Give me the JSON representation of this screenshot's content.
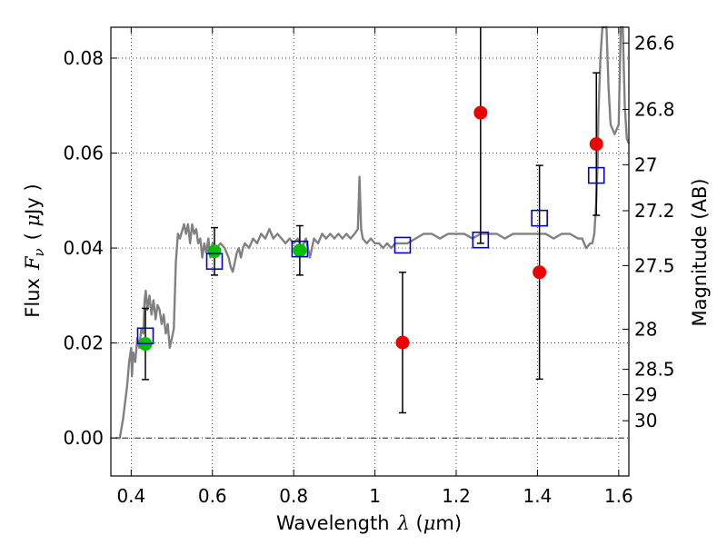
{
  "chart_data": {
    "type": "scatter",
    "xlabel": {
      "prefix": "Wavelength",
      "symbol": "λ",
      "unit_open": " (",
      "unit_mu": "μ",
      "unit_rest": "m)"
    },
    "ylabel": {
      "prefix": "Flux",
      "symbol": "F",
      "sub": "ν",
      "unit_open": "( ",
      "unit_mu": "μ",
      "unit_rest": "Jy )"
    },
    "y2label": "Magnitude (AB)",
    "xlim": [
      0.35,
      1.625
    ],
    "ylim": [
      -0.008,
      0.0865
    ],
    "grid": true,
    "x_ticks": [
      {
        "value": 0.4,
        "label": "0.4"
      },
      {
        "value": 0.6,
        "label": "0.6"
      },
      {
        "value": 0.8,
        "label": "0.8"
      },
      {
        "value": 1.0,
        "label": "1"
      },
      {
        "value": 1.2,
        "label": "1.2"
      },
      {
        "value": 1.4,
        "label": "1.4"
      },
      {
        "value": 1.6,
        "label": "1.6"
      }
    ],
    "y_ticks": [
      {
        "value": 0.0,
        "label": "0.00"
      },
      {
        "value": 0.02,
        "label": "0.02"
      },
      {
        "value": 0.04,
        "label": "0.04"
      },
      {
        "value": 0.06,
        "label": "0.06"
      },
      {
        "value": 0.08,
        "label": "0.08"
      }
    ],
    "mag_ticks": [
      {
        "mag": 26.6,
        "label": "26.6"
      },
      {
        "mag": 26.8,
        "label": "26.8"
      },
      {
        "mag": 27.0,
        "label": "27"
      },
      {
        "mag": 27.2,
        "label": "27.2"
      },
      {
        "mag": 27.5,
        "label": "27.5"
      },
      {
        "mag": 28.0,
        "label": "28"
      },
      {
        "mag": 28.5,
        "label": "28.5"
      },
      {
        "mag": 29.0,
        "label": "29"
      },
      {
        "mag": 30.0,
        "label": "30"
      }
    ],
    "series": [
      {
        "kind": "line",
        "color": "#808080",
        "points": [
          [
            0.362,
            0.0
          ],
          [
            0.372,
            0.0
          ],
          [
            0.38,
            0.004
          ],
          [
            0.39,
            0.011
          ],
          [
            0.395,
            0.016
          ],
          [
            0.4,
            0.019
          ],
          [
            0.402,
            0.013
          ],
          [
            0.405,
            0.018
          ],
          [
            0.41,
            0.016
          ],
          [
            0.415,
            0.021
          ],
          [
            0.42,
            0.019
          ],
          [
            0.425,
            0.023
          ],
          [
            0.43,
            0.022
          ],
          [
            0.433,
            0.029
          ],
          [
            0.436,
            0.031
          ],
          [
            0.44,
            0.027
          ],
          [
            0.445,
            0.03
          ],
          [
            0.45,
            0.026
          ],
          [
            0.455,
            0.029
          ],
          [
            0.46,
            0.025
          ],
          [
            0.465,
            0.028
          ],
          [
            0.47,
            0.027
          ],
          [
            0.475,
            0.024
          ],
          [
            0.48,
            0.026
          ],
          [
            0.485,
            0.022
          ],
          [
            0.49,
            0.024
          ],
          [
            0.495,
            0.019
          ],
          [
            0.5,
            0.021
          ],
          [
            0.505,
            0.023
          ],
          [
            0.51,
            0.037
          ],
          [
            0.515,
            0.043
          ],
          [
            0.52,
            0.042
          ],
          [
            0.53,
            0.045
          ],
          [
            0.535,
            0.043
          ],
          [
            0.54,
            0.045
          ],
          [
            0.545,
            0.041
          ],
          [
            0.55,
            0.045
          ],
          [
            0.555,
            0.043
          ],
          [
            0.56,
            0.044
          ],
          [
            0.565,
            0.041
          ],
          [
            0.57,
            0.042
          ],
          [
            0.575,
            0.038
          ],
          [
            0.58,
            0.041
          ],
          [
            0.585,
            0.039
          ],
          [
            0.59,
            0.042
          ],
          [
            0.595,
            0.038
          ],
          [
            0.6,
            0.041
          ],
          [
            0.61,
            0.04
          ],
          [
            0.62,
            0.041
          ],
          [
            0.63,
            0.04
          ],
          [
            0.64,
            0.038
          ],
          [
            0.645,
            0.036
          ],
          [
            0.65,
            0.035
          ],
          [
            0.655,
            0.037
          ],
          [
            0.66,
            0.039
          ],
          [
            0.665,
            0.04
          ],
          [
            0.67,
            0.038
          ],
          [
            0.675,
            0.04
          ],
          [
            0.68,
            0.041
          ],
          [
            0.69,
            0.04
          ],
          [
            0.7,
            0.042
          ],
          [
            0.71,
            0.041
          ],
          [
            0.72,
            0.043
          ],
          [
            0.73,
            0.042
          ],
          [
            0.74,
            0.044
          ],
          [
            0.75,
            0.042
          ],
          [
            0.76,
            0.043
          ],
          [
            0.77,
            0.042
          ],
          [
            0.78,
            0.041
          ],
          [
            0.79,
            0.042
          ],
          [
            0.8,
            0.041
          ],
          [
            0.81,
            0.042
          ],
          [
            0.82,
            0.04
          ],
          [
            0.83,
            0.042
          ],
          [
            0.84,
            0.038
          ],
          [
            0.85,
            0.042
          ],
          [
            0.86,
            0.041
          ],
          [
            0.87,
            0.043
          ],
          [
            0.88,
            0.042
          ],
          [
            0.89,
            0.043
          ],
          [
            0.9,
            0.042
          ],
          [
            0.91,
            0.043
          ],
          [
            0.92,
            0.042
          ],
          [
            0.93,
            0.043
          ],
          [
            0.94,
            0.042
          ],
          [
            0.95,
            0.043
          ],
          [
            0.958,
            0.044
          ],
          [
            0.962,
            0.055
          ],
          [
            0.966,
            0.044
          ],
          [
            0.97,
            0.042
          ],
          [
            0.98,
            0.041
          ],
          [
            0.99,
            0.042
          ],
          [
            1.0,
            0.041
          ],
          [
            1.01,
            0.041
          ],
          [
            1.02,
            0.04
          ],
          [
            1.03,
            0.041
          ],
          [
            1.04,
            0.04
          ],
          [
            1.05,
            0.041
          ],
          [
            1.06,
            0.041
          ],
          [
            1.08,
            0.041
          ],
          [
            1.1,
            0.042
          ],
          [
            1.12,
            0.043
          ],
          [
            1.14,
            0.043
          ],
          [
            1.16,
            0.042
          ],
          [
            1.18,
            0.043
          ],
          [
            1.2,
            0.043
          ],
          [
            1.22,
            0.043
          ],
          [
            1.24,
            0.042
          ],
          [
            1.26,
            0.043
          ],
          [
            1.28,
            0.043
          ],
          [
            1.3,
            0.043
          ],
          [
            1.32,
            0.042
          ],
          [
            1.34,
            0.043
          ],
          [
            1.36,
            0.043
          ],
          [
            1.38,
            0.043
          ],
          [
            1.4,
            0.043
          ],
          [
            1.42,
            0.043
          ],
          [
            1.44,
            0.042
          ],
          [
            1.46,
            0.043
          ],
          [
            1.48,
            0.043
          ],
          [
            1.5,
            0.042
          ],
          [
            1.51,
            0.042
          ],
          [
            1.52,
            0.04
          ],
          [
            1.53,
            0.041
          ],
          [
            1.535,
            0.041
          ],
          [
            1.54,
            0.043
          ],
          [
            1.545,
            0.05
          ],
          [
            1.548,
            0.058
          ],
          [
            1.55,
            0.068
          ],
          [
            1.555,
            0.08
          ],
          [
            1.56,
            0.087
          ],
          [
            1.57,
            0.087
          ],
          [
            1.575,
            0.074
          ],
          [
            1.58,
            0.066
          ],
          [
            1.59,
            0.064
          ],
          [
            1.6,
            0.066
          ],
          [
            1.605,
            0.087
          ],
          [
            1.61,
            0.087
          ],
          [
            1.615,
            0.07
          ],
          [
            1.62,
            0.063
          ],
          [
            1.625,
            0.062
          ]
        ]
      },
      {
        "kind": "markers",
        "marker": "circle",
        "color": "#00c000",
        "points": [
          {
            "x": 0.435,
            "y": 0.0198,
            "yerr_low": 0.0075,
            "yerr_high": 0.0075
          },
          {
            "x": 0.605,
            "y": 0.0393,
            "yerr_low": 0.005,
            "yerr_high": 0.005
          },
          {
            "x": 0.815,
            "y": 0.0395,
            "yerr_low": 0.0052,
            "yerr_high": 0.0052
          }
        ]
      },
      {
        "kind": "markers",
        "marker": "circle",
        "color": "#ee0000",
        "points": [
          {
            "x": 1.068,
            "y": 0.0201,
            "yerr_low": 0.0148,
            "yerr_high": 0.0148
          },
          {
            "x": 1.26,
            "y": 0.0685,
            "yerr_low": 0.0275,
            "yerr_high": 0.0275
          },
          {
            "x": 1.405,
            "y": 0.0349,
            "yerr_low": 0.0225,
            "yerr_high": 0.0225
          },
          {
            "x": 1.545,
            "y": 0.0619,
            "yerr_low": 0.015,
            "yerr_high": 0.015
          }
        ]
      },
      {
        "kind": "markers",
        "marker": "square",
        "color": "#0000cc",
        "points": [
          {
            "x": 0.435,
            "y": 0.0215
          },
          {
            "x": 0.605,
            "y": 0.0372
          },
          {
            "x": 0.815,
            "y": 0.0398
          },
          {
            "x": 1.068,
            "y": 0.0406
          },
          {
            "x": 1.26,
            "y": 0.0417
          },
          {
            "x": 1.405,
            "y": 0.0463
          },
          {
            "x": 1.545,
            "y": 0.0553
          }
        ]
      }
    ]
  }
}
